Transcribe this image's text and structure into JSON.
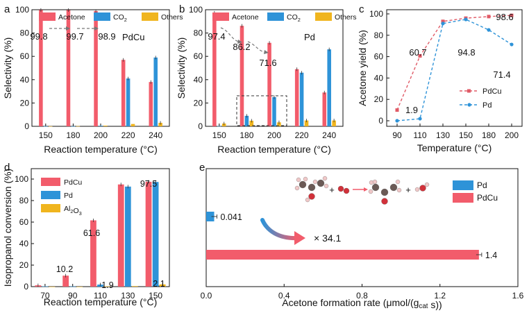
{
  "colors": {
    "acetone": "#f25c6b",
    "co2": "#2e93d8",
    "others": "#f0b51e",
    "pdcu": "#f25c6b",
    "pd": "#2e93d8",
    "al2o3": "#f0b51e",
    "dash_red": "#e05a66",
    "dash_blue": "#2e93d8",
    "grey": "#777777"
  },
  "chart_data": [
    {
      "panel": "a",
      "type": "bar",
      "label_text": "a",
      "catalyst": "PdCu",
      "categories": [
        "150",
        "180",
        "200",
        "220",
        "240"
      ],
      "series": [
        {
          "name": "Acetone",
          "key": "acetone",
          "values": [
            99.8,
            99.7,
            98.9,
            57,
            38
          ]
        },
        {
          "name": "CO",
          "sub": "2",
          "key": "co2",
          "values": [
            0.1,
            0.1,
            0.5,
            41,
            59
          ]
        },
        {
          "name": "Others",
          "key": "others",
          "values": [
            0.1,
            0.2,
            0.6,
            2,
            3
          ]
        }
      ],
      "data_labels": [
        "99.8",
        "99.7",
        "98.9"
      ],
      "ylim": [
        0,
        100
      ],
      "yticks": [
        "0",
        "20",
        "40",
        "60",
        "80",
        "100"
      ],
      "ylabel": "Selectivity (%)",
      "xlabel": "Reaction temperature (°C)"
    },
    {
      "panel": "b",
      "type": "bar",
      "label_text": "b",
      "catalyst": "Pd",
      "categories": [
        "150",
        "180",
        "200",
        "220",
        "240"
      ],
      "series": [
        {
          "name": "Acetone",
          "key": "acetone",
          "values": [
            97.4,
            86.2,
            71.6,
            49,
            29
          ]
        },
        {
          "name": "CO",
          "sub": "2",
          "key": "co2",
          "values": [
            0.2,
            9,
            25,
            46,
            66
          ]
        },
        {
          "name": "Others",
          "key": "others",
          "values": [
            2.4,
            4.8,
            3.4,
            5,
            5
          ]
        }
      ],
      "data_labels": [
        "97.4",
        "86.2",
        "71.6"
      ],
      "ylim": [
        0,
        100
      ],
      "yticks": [
        "0",
        "20",
        "40",
        "60",
        "80",
        "100"
      ],
      "ylabel": "Selectivity (%)",
      "xlabel": "Reaction temperature (°C)"
    },
    {
      "panel": "c",
      "type": "line",
      "label_text": "c",
      "x": [
        "90",
        "110",
        "130",
        "150",
        "180",
        "200"
      ],
      "series": [
        {
          "name": "PdCu",
          "key": "pdcu",
          "values": [
            10,
            60.7,
            93,
            96,
            97.5,
            98.6
          ]
        },
        {
          "name": "Pd",
          "key": "pd",
          "values": [
            0,
            1.9,
            91,
            94.8,
            85,
            71.4
          ]
        }
      ],
      "data_labels": [
        "60.7",
        "1.9",
        "94.8",
        "98.6",
        "71.4"
      ],
      "ylim": [
        0,
        100
      ],
      "yticks": [
        "0",
        "20",
        "40",
        "60",
        "80",
        "100"
      ],
      "ylabel": "Acetone  yield (%)",
      "xlabel": "Temperature (°C)"
    },
    {
      "panel": "d",
      "type": "bar",
      "label_text": "d",
      "categories": [
        "70",
        "90",
        "110",
        "130",
        "150"
      ],
      "series": [
        {
          "name": "PdCu",
          "key": "pdcu",
          "values": [
            1.2,
            10.2,
            61.6,
            95,
            97.5
          ]
        },
        {
          "name": "Pd",
          "key": "pd",
          "values": [
            0.3,
            0.2,
            1.9,
            93,
            97.3
          ]
        },
        {
          "name": "Al",
          "sub": "2",
          "tail": "O",
          "sub2": "3",
          "key": "al2o3",
          "values": [
            0,
            0,
            0.3,
            0.5,
            2.1
          ]
        }
      ],
      "data_labels": [
        "10.2",
        "61.6",
        "1.9",
        "97.5",
        "2.1"
      ],
      "ylim": [
        0,
        100
      ],
      "yticks": [
        "0",
        "20",
        "40",
        "60",
        "80",
        "100"
      ],
      "ylabel": "Isopropanol  conversion (%)",
      "xlabel": "Reaction temperature (°C)"
    },
    {
      "panel": "e",
      "type": "bar",
      "orientation": "horizontal",
      "label_text": "e",
      "categories": [
        "Pd",
        "PdCu"
      ],
      "values": [
        0.041,
        1.4
      ],
      "data_labels": [
        "0.041",
        "1.4"
      ],
      "annotation": "× 34.1",
      "xlim": [
        0,
        1.6
      ],
      "xticks": [
        "0.0",
        "0.4",
        "0.8",
        "1.2",
        "1.6"
      ],
      "xlabel": "Acetone formation rate (μmol/(g",
      "xlabel_sub": "cat",
      "xlabel_tail": " s))"
    }
  ]
}
